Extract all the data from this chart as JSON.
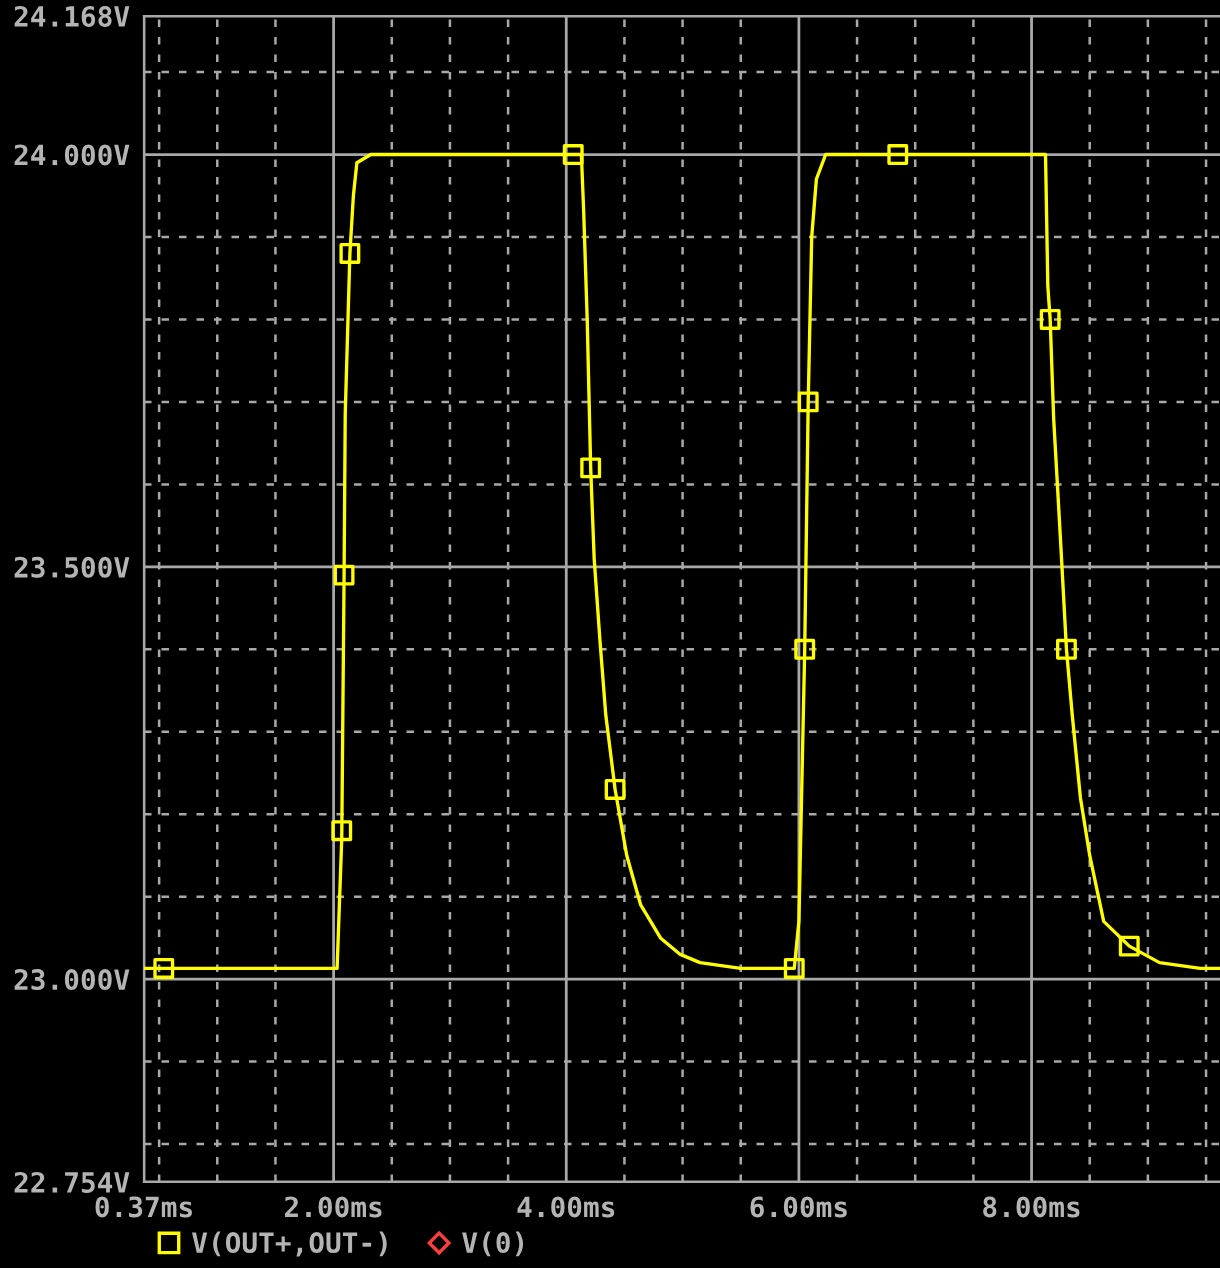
{
  "chart_data": {
    "type": "line",
    "xlim": [
      0.37,
      9.62
    ],
    "ylim": [
      22.754,
      24.168
    ],
    "xticks": [
      {
        "value": 0.37,
        "label": "0.37ms"
      },
      {
        "value": 0.5,
        "label": null
      },
      {
        "value": 1.0,
        "label": null
      },
      {
        "value": 1.5,
        "label": null
      },
      {
        "value": 2,
        "label": "2.00ms"
      },
      {
        "value": 2.5,
        "label": null
      },
      {
        "value": 3.0,
        "label": null
      },
      {
        "value": 3.5,
        "label": null
      },
      {
        "value": 4,
        "label": "4.00ms"
      },
      {
        "value": 4.5,
        "label": null
      },
      {
        "value": 5.0,
        "label": null
      },
      {
        "value": 5.5,
        "label": null
      },
      {
        "value": 6,
        "label": "6.00ms"
      },
      {
        "value": 6.5,
        "label": null
      },
      {
        "value": 7.0,
        "label": null
      },
      {
        "value": 7.5,
        "label": null
      },
      {
        "value": 8,
        "label": "8.00ms"
      },
      {
        "value": 8.5,
        "label": null
      },
      {
        "value": 9.0,
        "label": null
      },
      {
        "value": 9.5,
        "label": null
      }
    ],
    "yticks": [
      {
        "value": 22.754,
        "label": "22.754V"
      },
      {
        "value": 22.8,
        "label": null
      },
      {
        "value": 22.9,
        "label": null
      },
      {
        "value": 23,
        "label": "23.000V"
      },
      {
        "value": 23.1,
        "label": null
      },
      {
        "value": 23.2,
        "label": null
      },
      {
        "value": 23.3,
        "label": null
      },
      {
        "value": 23.4,
        "label": null
      },
      {
        "value": 23.5,
        "label": "23.500V"
      },
      {
        "value": 23.6,
        "label": null
      },
      {
        "value": 23.7,
        "label": null
      },
      {
        "value": 23.8,
        "label": null
      },
      {
        "value": 23.9,
        "label": null
      },
      {
        "value": 24,
        "label": "24.000V"
      },
      {
        "value": 24.1,
        "label": null
      },
      {
        "value": 24.168,
        "label": "24.168V"
      }
    ],
    "grid": true,
    "legend": "bottom",
    "line_style": "solid",
    "series": [
      {
        "color": "#ffff00",
        "marker": "none",
        "x": [
          0.37,
          2.03,
          2.07,
          2.09,
          2.1,
          2.14,
          2.17,
          2.2,
          2.32,
          4.13,
          4.15,
          4.18,
          4.21,
          4.24,
          4.29,
          4.34,
          4.42,
          4.52,
          4.64,
          4.81,
          4.98,
          5.15,
          5.5,
          5.96,
          6.0,
          6.05,
          6.08,
          6.11,
          6.15,
          6.23,
          6.32,
          8.12,
          8.14,
          8.16,
          8.19,
          8.25,
          8.3,
          8.35,
          8.42,
          8.5,
          8.62,
          8.84,
          9.1,
          9.45,
          9.62
        ],
        "values": [
          23.013,
          23.013,
          23.17,
          23.49,
          23.686,
          23.88,
          23.95,
          23.99,
          24.0,
          24.0,
          23.93,
          23.8,
          23.62,
          23.51,
          23.41,
          23.32,
          23.23,
          23.15,
          23.09,
          23.05,
          23.03,
          23.02,
          23.013,
          23.013,
          23.07,
          23.4,
          23.7,
          23.9,
          23.97,
          24.0,
          24.0,
          24.0,
          23.84,
          23.8,
          23.68,
          23.53,
          23.4,
          23.32,
          23.22,
          23.15,
          23.07,
          23.04,
          23.02,
          23.013,
          23.013
        ]
      },
      {
        "type": "scatter",
        "name": "V(OUT+,OUT-)",
        "color": "#ffff00",
        "marker": "square",
        "x": [
          0.54,
          2.07,
          2.09,
          2.14,
          4.06,
          4.21,
          4.42,
          5.96,
          6.05,
          6.08,
          6.85,
          8.16,
          8.3,
          8.84
        ],
        "values": [
          23.013,
          23.18,
          23.49,
          23.88,
          24.0,
          23.62,
          23.23,
          23.013,
          23.4,
          23.7,
          24.0,
          23.8,
          23.4,
          23.04
        ]
      },
      {
        "type": "scatter",
        "name": "V(0)",
        "color": "#ff4040",
        "marker": "diamond"
      }
    ]
  }
}
